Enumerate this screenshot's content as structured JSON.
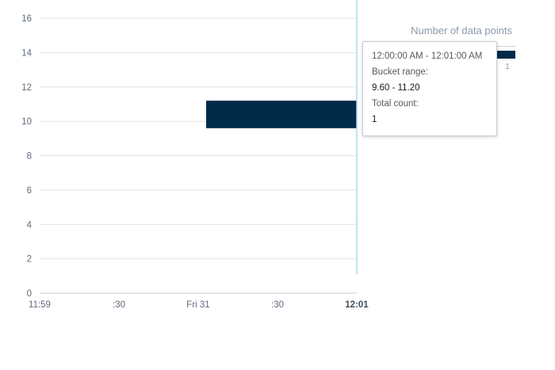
{
  "chart_data": {
    "type": "heatmap",
    "legend_title": "Number of data points",
    "legend_count": "1",
    "y_ticks": [
      "0",
      "2",
      "4",
      "6",
      "8",
      "10",
      "12",
      "14",
      "16"
    ],
    "ylim": [
      0,
      17
    ],
    "x_ticks": [
      {
        "label": "11:59",
        "minutes": 0,
        "bold": false
      },
      {
        "label": ":30",
        "minutes": 0.5,
        "bold": false
      },
      {
        "label": "Fri 31",
        "minutes": 1.0,
        "bold": false
      },
      {
        "label": ":30",
        "minutes": 1.5,
        "bold": false
      },
      {
        "label": "12:01",
        "minutes": 2.0,
        "bold": true
      }
    ],
    "xlim": [
      0,
      2.0
    ],
    "buckets": [
      {
        "x_start": 1.05,
        "x_end": 2.0,
        "y_low": 9.6,
        "y_high": 11.2,
        "count": 1
      }
    ],
    "hover_line_minutes": 2.0,
    "bar_color": "#002a48",
    "grid": true
  },
  "tooltip": {
    "time_range": "12:00:00 AM - 12:01:00 AM",
    "bucket_range_label": "Bucket range:",
    "bucket_range_value": "9.60 - 11.20",
    "total_count_label": "Total count:",
    "total_count_value": "1"
  }
}
